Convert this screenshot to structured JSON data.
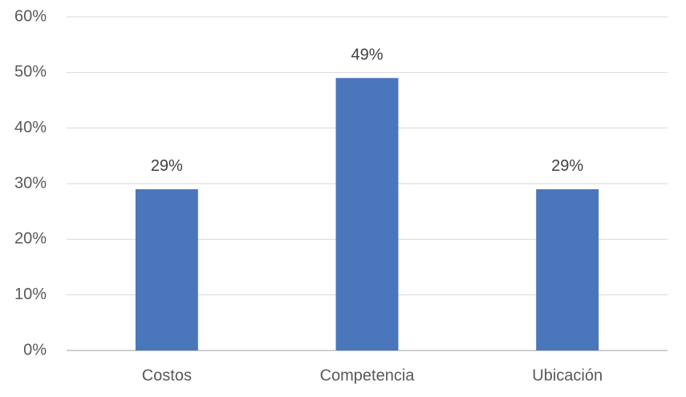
{
  "chart_data": {
    "type": "bar",
    "categories": [
      "Costos",
      "Competencia",
      "Ubicación"
    ],
    "values": [
      29,
      49,
      29
    ],
    "value_labels": [
      "29%",
      "49%",
      "29%"
    ],
    "color": "#4a76bb",
    "ylim": [
      0,
      60
    ],
    "yticks": [
      {
        "value": 0,
        "label": "0%"
      },
      {
        "value": 10,
        "label": "10%"
      },
      {
        "value": 20,
        "label": "20%"
      },
      {
        "value": 30,
        "label": "30%"
      },
      {
        "value": 40,
        "label": "40%"
      },
      {
        "value": 50,
        "label": "50%"
      },
      {
        "value": 60,
        "label": "60%"
      }
    ],
    "grid": true
  }
}
